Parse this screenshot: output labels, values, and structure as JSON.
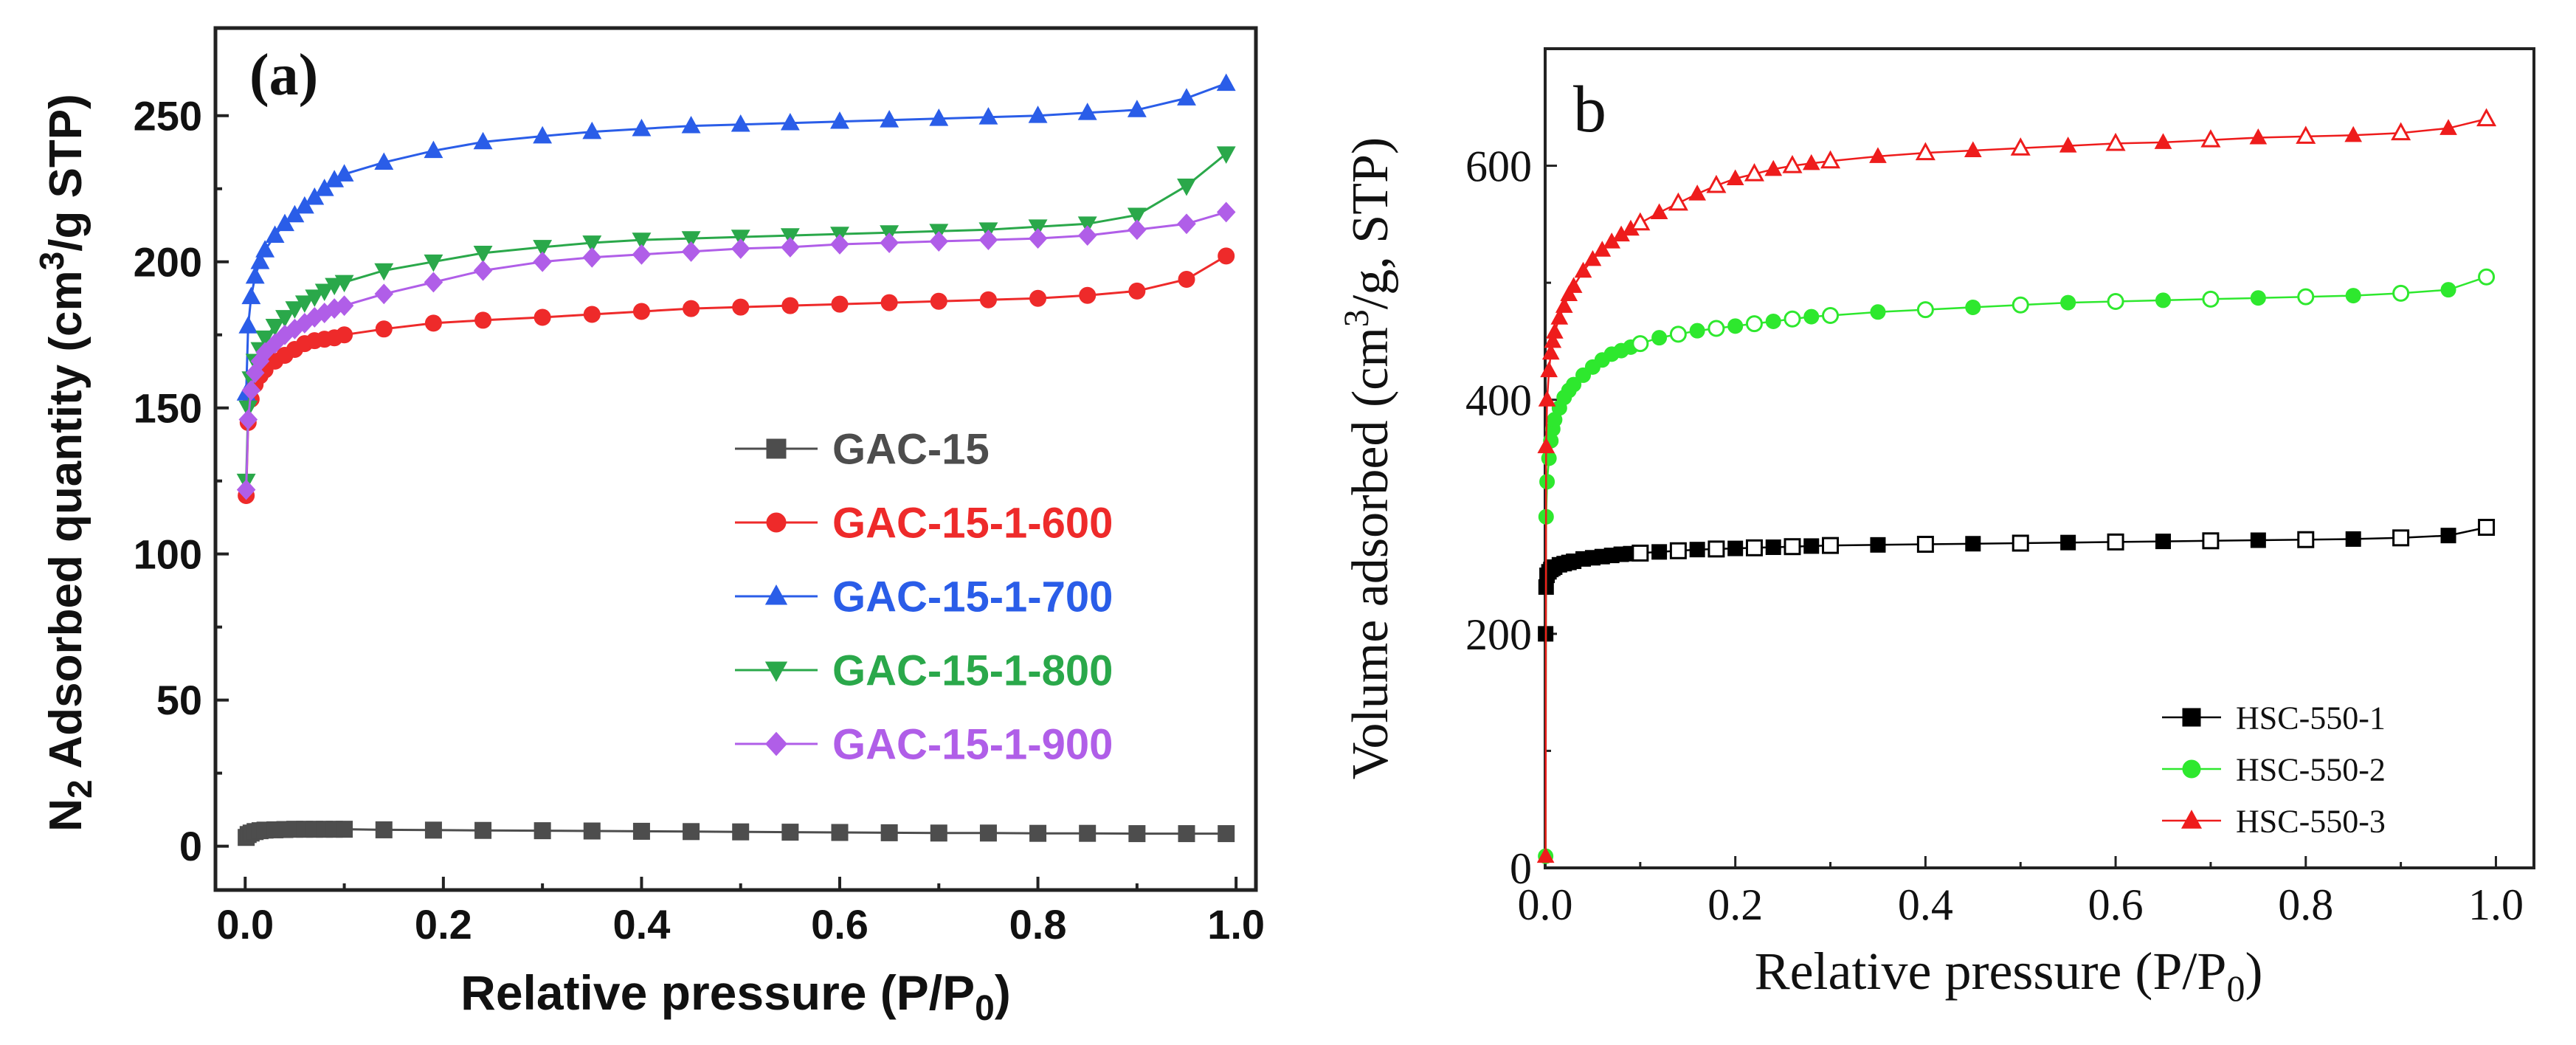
{
  "chart_data": [
    {
      "panel_label": "(a)",
      "type": "line",
      "xlabel_main": "Relative pressure (P/P",
      "xlabel_sub": "0",
      "xlabel_tail": ")",
      "ylabel_parts": {
        "n": "N",
        "n_sub": "2",
        "mid": " Adsorbed quantity (cm",
        "sup": "3",
        "tail": "/g STP)"
      },
      "xlim": [
        -0.03,
        1.02
      ],
      "ylim": [
        -15,
        280
      ],
      "xticks": [
        0.0,
        0.2,
        0.4,
        0.6,
        0.8,
        1.0
      ],
      "xtick_labels": [
        "0.0",
        "0.2",
        "0.4",
        "0.6",
        "0.8",
        "1.0"
      ],
      "yticks": [
        0,
        50,
        100,
        150,
        200,
        250
      ],
      "ytick_labels": [
        "0",
        "50",
        "100",
        "150",
        "200",
        "250"
      ],
      "x": [
        0.001,
        0.003,
        0.006,
        0.01,
        0.015,
        0.02,
        0.03,
        0.04,
        0.05,
        0.06,
        0.07,
        0.08,
        0.09,
        0.1,
        0.14,
        0.19,
        0.24,
        0.3,
        0.35,
        0.4,
        0.45,
        0.5,
        0.55,
        0.6,
        0.65,
        0.7,
        0.75,
        0.8,
        0.85,
        0.9,
        0.95,
        0.99
      ],
      "series": [
        {
          "name": "GAC-15",
          "color": "#4d4d4d",
          "marker": "square",
          "values": [
            3,
            4,
            4.5,
            5,
            5.3,
            5.5,
            5.6,
            5.7,
            5.8,
            5.8,
            5.8,
            5.8,
            5.8,
            5.8,
            5.6,
            5.5,
            5.4,
            5.3,
            5.2,
            5.1,
            5.0,
            4.9,
            4.8,
            4.7,
            4.6,
            4.5,
            4.5,
            4.4,
            4.4,
            4.3,
            4.3,
            4.3
          ]
        },
        {
          "name": "GAC-15-1-600",
          "color": "#ee2a2a",
          "marker": "circle",
          "values": [
            120,
            145,
            153,
            158,
            161,
            163,
            166,
            168,
            170,
            172,
            173,
            173.5,
            174,
            175,
            177,
            179,
            180,
            181,
            182,
            183,
            184,
            184.5,
            185,
            185.5,
            186,
            186.5,
            187,
            187.5,
            188.5,
            190,
            194,
            202
          ]
        },
        {
          "name": "GAC-15-1-700",
          "color": "#2a5de8",
          "marker": "triangle-up",
          "values": [
            155,
            178,
            188,
            195,
            200,
            204,
            209,
            213,
            216,
            219,
            222,
            225,
            228,
            230,
            234,
            238,
            241,
            243,
            244.5,
            245.5,
            246.5,
            247,
            247.5,
            248,
            248.5,
            249,
            249.5,
            250,
            251,
            252,
            256,
            261
          ]
        },
        {
          "name": "GAC-15-1-800",
          "color": "#2aa84a",
          "marker": "triangle-down",
          "values": [
            125,
            150,
            160,
            166,
            170,
            174,
            178,
            181,
            184,
            186,
            188,
            190,
            192,
            193,
            197,
            200,
            203,
            205,
            206.5,
            207.5,
            208,
            208.5,
            209,
            209.5,
            210,
            210.5,
            211,
            212,
            213,
            216,
            226,
            237
          ]
        },
        {
          "name": "GAC-15-1-900",
          "color": "#b05ee8",
          "marker": "diamond",
          "values": [
            122,
            146,
            156,
            162,
            166,
            169,
            172,
            175,
            177,
            179,
            181,
            182.5,
            184,
            185,
            189,
            193,
            197,
            200,
            201.5,
            202.5,
            203.5,
            204.5,
            205,
            206,
            206.5,
            207,
            207.5,
            208,
            209,
            211,
            213,
            217
          ]
        }
      ],
      "legend_position": "lower-right"
    },
    {
      "panel_label": "b",
      "type": "line",
      "xlabel_main": "Relative pressure (P/P",
      "xlabel_sub": "0",
      "xlabel_tail": ")",
      "ylabel_parts": {
        "mid": "Volume adsorbed (cm",
        "sup": "3",
        "tail": "/g, STP)"
      },
      "xlim": [
        0.0,
        1.04
      ],
      "ylim": [
        0,
        700
      ],
      "xticks": [
        0.0,
        0.2,
        0.4,
        0.6,
        0.8,
        1.0
      ],
      "xtick_labels": [
        "0.0",
        "0.2",
        "0.4",
        "0.6",
        "0.8",
        "1.0"
      ],
      "yticks": [
        0,
        200,
        400,
        600
      ],
      "ytick_labels": [
        "0",
        "200",
        "400",
        "600"
      ],
      "x": [
        0.0005,
        0.001,
        0.002,
        0.004,
        0.006,
        0.008,
        0.01,
        0.015,
        0.02,
        0.025,
        0.03,
        0.04,
        0.05,
        0.06,
        0.07,
        0.08,
        0.09,
        0.1,
        0.12,
        0.14,
        0.16,
        0.18,
        0.2,
        0.22,
        0.24,
        0.26,
        0.28,
        0.3,
        0.35,
        0.4,
        0.45,
        0.5,
        0.55,
        0.6,
        0.65,
        0.7,
        0.75,
        0.8,
        0.85,
        0.9,
        0.95,
        0.99
      ],
      "series": [
        {
          "name": "HSC-550-1",
          "color": "#000000",
          "marker": "square",
          "values": [
            200,
            240,
            250,
            253,
            255,
            256,
            257,
            259,
            260,
            261,
            262,
            264,
            265,
            266,
            267,
            268,
            268.5,
            269,
            270,
            271,
            272,
            272.5,
            273,
            273.5,
            274,
            274.5,
            275,
            275.5,
            276,
            276.5,
            277,
            277.5,
            278,
            278.5,
            279,
            279.5,
            280,
            280.5,
            281,
            282,
            284,
            291
          ]
        },
        {
          "name": "HSC-550-2",
          "color": "#2ee82e",
          "marker": "circle",
          "values": [
            10,
            300,
            330,
            350,
            365,
            375,
            383,
            393,
            402,
            408,
            413,
            421,
            428,
            434,
            439,
            442,
            445,
            448,
            453,
            456,
            459,
            461,
            463,
            465,
            467,
            469,
            471,
            472,
            475,
            477,
            479,
            481,
            483,
            484,
            485,
            486,
            487,
            488,
            489,
            491,
            494,
            505
          ]
        },
        {
          "name": "HSC-550-3",
          "color": "#ee1c1c",
          "marker": "triangle-up",
          "values": [
            10,
            360,
            400,
            425,
            440,
            450,
            458,
            470,
            480,
            490,
            497,
            510,
            520,
            528,
            535,
            541,
            546,
            551,
            560,
            568,
            576,
            583,
            589,
            593,
            597,
            600,
            602,
            604,
            608,
            611,
            613,
            615,
            617,
            619,
            620,
            622,
            624,
            625,
            626,
            628,
            632,
            640
          ]
        }
      ],
      "legend_position": "lower-right"
    }
  ]
}
